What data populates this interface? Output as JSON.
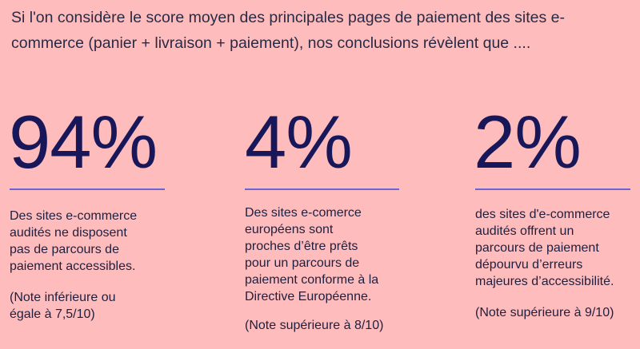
{
  "intro": "Si l'on considère le score moyen des principales pages de paiement des sites e-commerce (panier + livraison + paiement), nos conclusions révèlent que ....",
  "stats": [
    {
      "value": "94%",
      "description": "Des sites e-commerce\naudités ne disposent\npas de parcours de\npaiement accessibles.",
      "note": "(Note inférieure ou\négale à 7,5/10)"
    },
    {
      "value": "4%",
      "description": "Des sites e-comerce\neuropéens sont\nproches d’être prêts\npour un parcours de\npaiement conforme à la\nDirective Européenne.",
      "note": "(Note supérieure à 8/10)"
    },
    {
      "value": "2%",
      "description": "des sites d'e-commerce\naudités offrent un\nparcours de paiement\ndépourvu d’erreurs\nmajeures d’accessibilité.",
      "note": "(Note supérieure à 9/10)"
    }
  ],
  "colors": {
    "background": "#ffbcbc",
    "big_number": "#17175a",
    "rule": "#6a64d8",
    "text": "#1f1f3f"
  }
}
